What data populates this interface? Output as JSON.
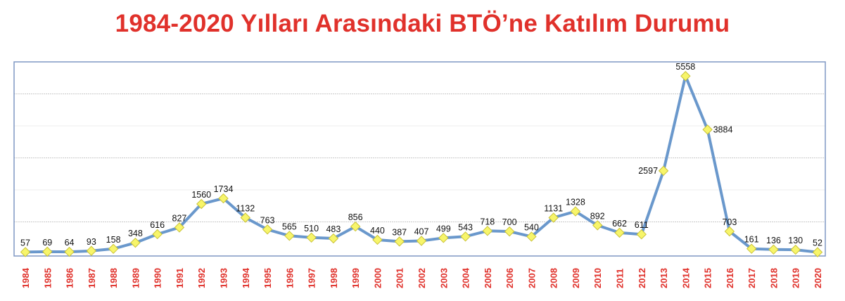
{
  "title": "1984-2020 Yılları Arasındaki BTÖ’ne Katılım Durumu",
  "colors": {
    "title": "#e0312b",
    "line": "#6a98cc",
    "marker_fill": "#f7f56a",
    "marker_stroke": "#c9c23a",
    "frame": "#7f97c4",
    "x_tick_labels": "#e0312b",
    "data_labels": "#111111"
  },
  "chart_data": {
    "type": "line",
    "title": "1984-2020 Yılları Arasındaki BTÖ’ne Katılım Durumu",
    "xlabel": "",
    "ylabel": "",
    "categories": [
      "1984",
      "1985",
      "1986",
      "1987",
      "1988",
      "1989",
      "1990",
      "1991",
      "1992",
      "1993",
      "1994",
      "1995",
      "1996",
      "1997",
      "1998",
      "1999",
      "2000",
      "2001",
      "2002",
      "2003",
      "2004",
      "2005",
      "2006",
      "2007",
      "2008",
      "2009",
      "2010",
      "2011",
      "2012",
      "2013",
      "2014",
      "2015",
      "2016",
      "2017",
      "2018",
      "2019",
      "2020"
    ],
    "series": [
      {
        "name": "Katılım",
        "values": [
          57,
          69,
          64,
          93,
          158,
          348,
          616,
          827,
          1560,
          1734,
          1132,
          763,
          565,
          510,
          483,
          856,
          440,
          387,
          407,
          499,
          543,
          718,
          700,
          540,
          1131,
          1328,
          892,
          662,
          611,
          2597,
          5558,
          3884,
          703,
          161,
          136,
          130,
          52
        ]
      }
    ],
    "ylim": [
      0,
      6000
    ],
    "y_gridlines": [
      1000,
      2000,
      3000,
      4000,
      5000
    ],
    "y_tick_labels_visible": false,
    "grid": true,
    "legend": "none",
    "data_labels": true,
    "x_tick_rotation": -90
  }
}
